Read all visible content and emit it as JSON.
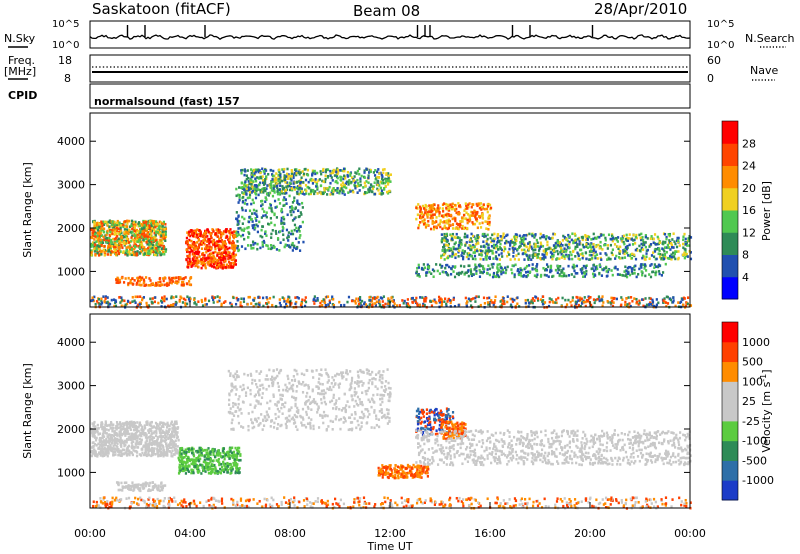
{
  "header": {
    "station": "Saskatoon (fitACF)",
    "beam": "Beam 08",
    "date": "28/Apr/2010"
  },
  "param_panels": {
    "nsky_label": "N.Sky",
    "nsky_ticks": [
      "10^5",
      "10^0"
    ],
    "nsky_right_ticks": [
      "10^5",
      "10^0"
    ],
    "nsearch_label": "N.Search",
    "freq_label": "Freq.",
    "freq_unit": "[MHz]",
    "freq_ticks": [
      "18",
      "8"
    ],
    "nave_ticks": [
      "60",
      "0"
    ],
    "nave_label": "Nave",
    "cpid_label": "CPID",
    "cpid_text": "normalsound (fast) 157"
  },
  "chart_data": [
    {
      "type": "heatmap",
      "title": "",
      "parameter": "Power",
      "ylabel": "Slant Range [km]",
      "xlabel": "",
      "ylim": [
        180,
        4650
      ],
      "xlim": [
        0,
        24
      ],
      "yticks": [
        "4000",
        "3000",
        "2000",
        "1000"
      ],
      "colorbar_label": "Power [dB]",
      "colorbar_ticks": [
        "28",
        "24",
        "20",
        "16",
        "12",
        "8",
        "4"
      ],
      "colorbar_colors": [
        "#0000ff",
        "#2050b0",
        "#2e8b57",
        "#50c850",
        "#f0d020",
        "#ff8c00",
        "#ff4500",
        "#ff0000"
      ]
    },
    {
      "type": "heatmap",
      "title": "",
      "parameter": "Velocity",
      "ylabel": "Slant Range [km]",
      "xlabel": "Time UT",
      "ylim": [
        180,
        4650
      ],
      "xlim": [
        0,
        24
      ],
      "yticks": [
        "4000",
        "3000",
        "2000",
        "1000"
      ],
      "colorbar_label": "Velocity [m s",
      "colorbar_label_sup": "-1",
      "colorbar_label_end": "]",
      "colorbar_ticks": [
        "1000",
        "500",
        "100",
        "25",
        "-25",
        "-100",
        "-500",
        "-1000"
      ],
      "colorbar_colors": [
        "#1c3cc8",
        "#2e6fa8",
        "#2e8b57",
        "#5ccc40",
        "#c8c8c8",
        "#c8c8c8",
        "#ff8c00",
        "#ff4000",
        "#ff0000"
      ]
    }
  ],
  "x_axis": {
    "ticks": [
      {
        "t": 0,
        "label": "00:00"
      },
      {
        "t": 4,
        "label": "04:00"
      },
      {
        "t": 8,
        "label": "08:00"
      },
      {
        "t": 12,
        "label": "12:00"
      },
      {
        "t": 16,
        "label": "16:00"
      },
      {
        "t": 20,
        "label": "20:00"
      },
      {
        "t": 24,
        "label": "00:00"
      }
    ],
    "title": "Time UT"
  },
  "colors": {
    "grey": "#c8c8c8",
    "green": "#2e8b57",
    "blue": "#1c3cc8",
    "orange": "#ff8c00",
    "red": "#ff0000"
  }
}
